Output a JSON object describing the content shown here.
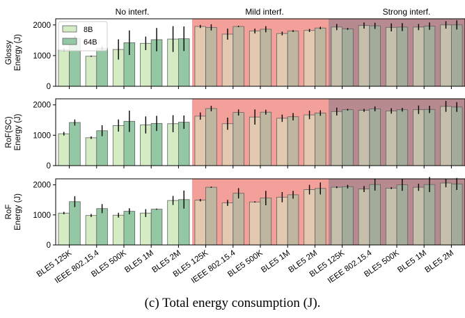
{
  "caption": "(c) Total energy consumption (J).",
  "regions": [
    {
      "label": "No interf.",
      "color": "#ffffff"
    },
    {
      "label": "Mild interf.",
      "color": "#f4a09a"
    },
    {
      "label": "Strong interf.",
      "color": "#b68a8e"
    }
  ],
  "legend": [
    "8B",
    "64B"
  ],
  "chart_data": {
    "type": "bar",
    "categories": [
      "BLE5 125K",
      "IEEE 802.15.4",
      "BLE5 500K",
      "BLE5 1M",
      "BLE5 2M",
      "BLE5 125K",
      "IEEE 802.15.4",
      "BLE5 500K",
      "BLE5 1M",
      "BLE5 2M",
      "BLE5 125K",
      "IEEE 802.15.4",
      "BLE5 500K",
      "BLE5 1M",
      "BLE5 2M"
    ],
    "category_region": [
      0,
      0,
      0,
      0,
      0,
      1,
      1,
      1,
      1,
      1,
      2,
      2,
      2,
      2,
      2
    ],
    "series_names": [
      "8B",
      "64B"
    ],
    "ylim": [
      0,
      2200
    ],
    "yticks": [
      0,
      1000,
      2000
    ],
    "subplots": [
      {
        "ylabel": [
          "Glossy",
          "Energy (J)"
        ],
        "values_8B": [
          1190,
          980,
          1200,
          1400,
          1540,
          1950,
          1700,
          1800,
          1720,
          1820,
          1930,
          1980,
          1920,
          1930,
          2000
        ],
        "err_8B": [
          50,
          20,
          330,
          220,
          420,
          50,
          180,
          80,
          60,
          50,
          100,
          100,
          130,
          100,
          120
        ],
        "values_64B": [
          1560,
          1240,
          1420,
          1520,
          1550,
          1920,
          1950,
          1860,
          1800,
          1900,
          1870,
          1970,
          1930,
          1960,
          2000
        ],
        "err_64B": [
          90,
          60,
          400,
          380,
          400,
          100,
          20,
          100,
          30,
          40,
          30,
          100,
          130,
          120,
          150
        ]
      },
      {
        "ylabel": [
          "RoF(SC)",
          "Energy (J)"
        ],
        "values_8B": [
          1050,
          920,
          1320,
          1340,
          1380,
          1630,
          1380,
          1600,
          1560,
          1670,
          1780,
          1820,
          1800,
          1840,
          1950
        ],
        "err_8B": [
          60,
          40,
          200,
          280,
          280,
          120,
          200,
          250,
          120,
          140,
          130,
          50,
          90,
          140,
          180
        ],
        "values_64B": [
          1420,
          1150,
          1460,
          1390,
          1430,
          1880,
          1750,
          1760,
          1610,
          1730,
          1840,
          1870,
          1840,
          1850,
          1930
        ],
        "err_64B": [
          100,
          180,
          350,
          250,
          220,
          90,
          100,
          80,
          120,
          90,
          30,
          80,
          60,
          120,
          160
        ]
      },
      {
        "ylabel": [
          "RoF",
          "Energy (J)"
        ],
        "values_8B": [
          1060,
          980,
          990,
          1060,
          1480,
          1490,
          1400,
          1430,
          1590,
          1840,
          1920,
          1860,
          1890,
          1920,
          2060
        ],
        "err_8B": [
          40,
          50,
          80,
          130,
          150,
          40,
          100,
          20,
          170,
          160,
          30,
          100,
          30,
          120,
          140
        ],
        "values_64B": [
          1440,
          1210,
          1120,
          1190,
          1510,
          1920,
          1720,
          1560,
          1670,
          1880,
          1940,
          2010,
          2000,
          2010,
          2030
        ],
        "err_64B": [
          180,
          150,
          100,
          20,
          300,
          20,
          170,
          240,
          130,
          200,
          60,
          200,
          200,
          250,
          200
        ]
      }
    ]
  },
  "colors": {
    "bar_8B": "#d4ebc3",
    "bar_64B": "#94c8a4",
    "edge": "#606060",
    "error": "#000000"
  }
}
